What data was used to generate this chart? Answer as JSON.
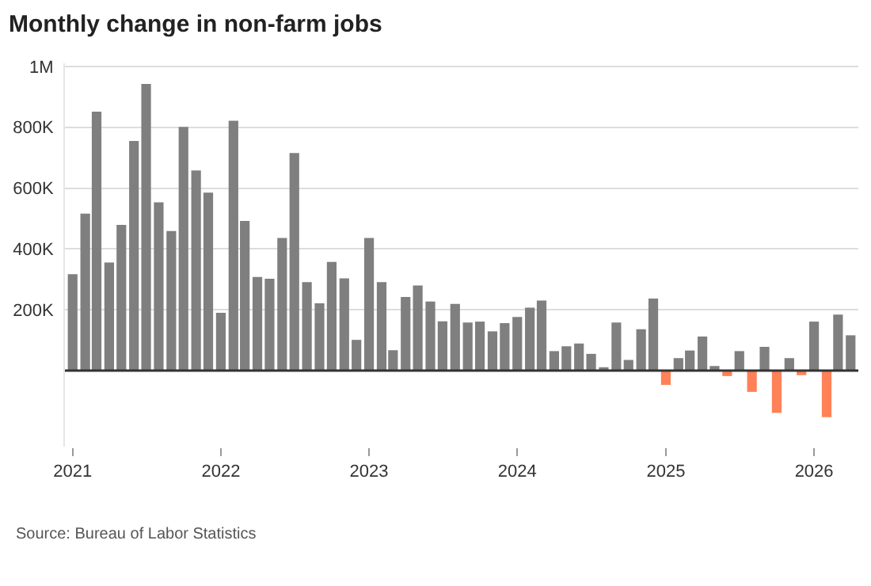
{
  "chart_data": {
    "type": "bar",
    "title": "Monthly change in non-farm jobs",
    "x": [
      "2021-01",
      "2021-02",
      "2021-03",
      "2021-04",
      "2021-05",
      "2021-06",
      "2021-07",
      "2021-08",
      "2021-09",
      "2021-10",
      "2021-11",
      "2021-12",
      "2022-01",
      "2022-02",
      "2022-03",
      "2022-04",
      "2022-05",
      "2022-06",
      "2022-07",
      "2022-08",
      "2022-09",
      "2022-10",
      "2022-11",
      "2022-12",
      "2023-01",
      "2023-02",
      "2023-03",
      "2023-04",
      "2023-05",
      "2023-06",
      "2023-07",
      "2023-08",
      "2023-09",
      "2023-10",
      "2023-11",
      "2023-12",
      "2024-01",
      "2024-02",
      "2024-03",
      "2024-04",
      "2024-05",
      "2024-06",
      "2024-07",
      "2024-08",
      "2024-09",
      "2024-10",
      "2024-11",
      "2024-12",
      "2025-01",
      "2025-02",
      "2025-03",
      "2025-04",
      "2025-05",
      "2025-06",
      "2025-07",
      "2025-08",
      "2025-09",
      "2025-10",
      "2025-11",
      "2025-12",
      "2026-01",
      "2026-02",
      "2026-03",
      "2026-04"
    ],
    "values": [
      317000,
      516000,
      851000,
      355000,
      479000,
      755000,
      942000,
      553000,
      459000,
      801000,
      658000,
      585000,
      190000,
      821000,
      492000,
      308000,
      302000,
      436000,
      715000,
      291000,
      221000,
      357000,
      303000,
      101000,
      436000,
      291000,
      67000,
      242000,
      280000,
      227000,
      162000,
      219000,
      158000,
      161000,
      129000,
      156000,
      176000,
      207000,
      230000,
      64000,
      80000,
      89000,
      55000,
      11000,
      158000,
      35000,
      136000,
      237000,
      -47000,
      41000,
      66000,
      112000,
      15000,
      -18000,
      64000,
      -70000,
      78000,
      -139000,
      41000,
      -15000,
      161000,
      -153000,
      184000,
      116000
    ],
    "colors": [
      "#7f7f7f",
      "#7f7f7f",
      "#7f7f7f",
      "#7f7f7f",
      "#7f7f7f",
      "#7f7f7f",
      "#7f7f7f",
      "#7f7f7f",
      "#7f7f7f",
      "#7f7f7f",
      "#7f7f7f",
      "#7f7f7f",
      "#7f7f7f",
      "#7f7f7f",
      "#7f7f7f",
      "#7f7f7f",
      "#7f7f7f",
      "#7f7f7f",
      "#7f7f7f",
      "#7f7f7f",
      "#7f7f7f",
      "#7f7f7f",
      "#7f7f7f",
      "#7f7f7f",
      "#7f7f7f",
      "#7f7f7f",
      "#7f7f7f",
      "#7f7f7f",
      "#7f7f7f",
      "#7f7f7f",
      "#7f7f7f",
      "#7f7f7f",
      "#7f7f7f",
      "#7f7f7f",
      "#7f7f7f",
      "#7f7f7f",
      "#7f7f7f",
      "#7f7f7f",
      "#7f7f7f",
      "#7f7f7f",
      "#7f7f7f",
      "#7f7f7f",
      "#7f7f7f",
      "#7f7f7f",
      "#7f7f7f",
      "#7f7f7f",
      "#7f7f7f",
      "#7f7f7f",
      "#ff8157",
      "#7f7f7f",
      "#7f7f7f",
      "#7f7f7f",
      "#7f7f7f",
      "#ff8157",
      "#7f7f7f",
      "#ff8157",
      "#7f7f7f",
      "#ff8157",
      "#7f7f7f",
      "#ff8157",
      "#7f7f7f",
      "#ff8157",
      "#7f7f7f",
      "#7f7f7f"
    ],
    "xlim": [
      "2020-12-13",
      "2026-04-20"
    ],
    "xticks": [
      {
        "value": "2021-01-01",
        "label": "2021"
      },
      {
        "value": "2022-01-01",
        "label": "2022"
      },
      {
        "value": "2023-01-01",
        "label": "2023"
      },
      {
        "value": "2024-01-01",
        "label": "2024"
      },
      {
        "value": "2025-01-01",
        "label": "2025"
      },
      {
        "value": "2026-01-01",
        "label": "2026"
      }
    ],
    "ylim": [
      -250000,
      1010000
    ],
    "yticks": [
      {
        "value": 200000,
        "label": "200K"
      },
      {
        "value": 400000,
        "label": "400K"
      },
      {
        "value": 600000,
        "label": "600K"
      },
      {
        "value": 800000,
        "label": "800K"
      },
      {
        "value": 1000000,
        "label": "1M"
      }
    ],
    "ref_lines": [
      {
        "axis": "y",
        "value": 0,
        "color": "#333333"
      }
    ],
    "grid": "y",
    "legend": false,
    "annotations": [
      "Source: Bureau of Labor Statistics"
    ]
  }
}
